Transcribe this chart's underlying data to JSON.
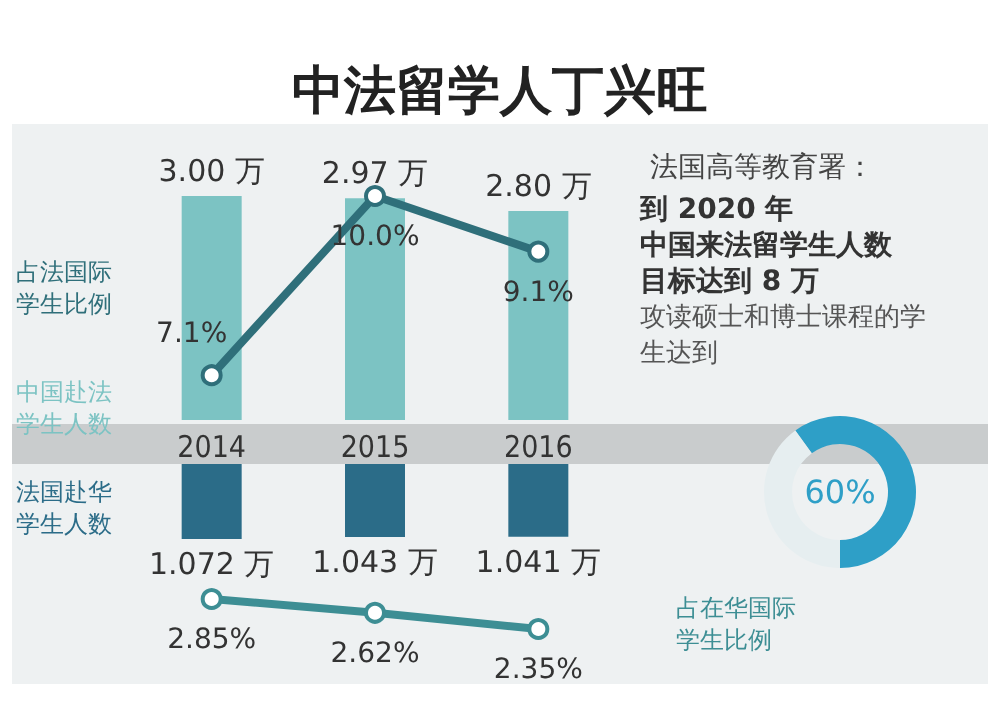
{
  "chart_data": [
    {
      "type": "bar",
      "title": "中法留学人丁兴旺",
      "categories": [
        "2014",
        "2015",
        "2016"
      ],
      "tick_labels": "x",
      "series": [
        {
          "type": "bar",
          "name": "中国赴法学生人数",
          "color": "#7cc3c3",
          "values": [
            3.0,
            2.97,
            2.8
          ],
          "value_labels": [
            "3.00 万",
            "2.97 万",
            "2.80 万"
          ]
        },
        {
          "type": "line",
          "name": "占法国际学生比例",
          "color": "#2f6f7a",
          "axis": "y2",
          "values": [
            7.1,
            10.0,
            9.1
          ],
          "value_labels": [
            "7.1%",
            "10.0%",
            "9.1%"
          ]
        }
      ],
      "marker": "circle"
    },
    {
      "type": "bar",
      "categories": [
        "2014",
        "2015",
        "2016"
      ],
      "tick_labels": false,
      "series": [
        {
          "name": "法国赴华学生人数",
          "color": "#2b6c88",
          "values": [
            1.072,
            1.043,
            1.041
          ],
          "value_labels": [
            "1.072 万",
            "1.043 万",
            "1.041 万"
          ]
        }
      ]
    },
    {
      "type": "line",
      "categories": [
        "2014",
        "2015",
        "2016"
      ],
      "tick_labels": false,
      "series": [
        {
          "name": "占在华国际学生比例",
          "color": "#3d8e94",
          "values": [
            2.85,
            2.62,
            2.35
          ],
          "value_labels": [
            "2.85%",
            "2.62%",
            "2.35%"
          ]
        }
      ],
      "marker": "circle"
    },
    {
      "type": "donut",
      "title": "法国高等教育署：",
      "categories": [
        null,
        null
      ],
      "values": [
        60,
        40
      ],
      "colors": [
        "#2e9fc7",
        "#e6eef0"
      ],
      "value_labels": [
        "60%",
        null
      ],
      "annotations": [
        "到 2020 年",
        "中国来法留学生人数",
        "目标达到 8 万",
        "攻读硕士和博士课程的学生达到"
      ]
    }
  ]
}
